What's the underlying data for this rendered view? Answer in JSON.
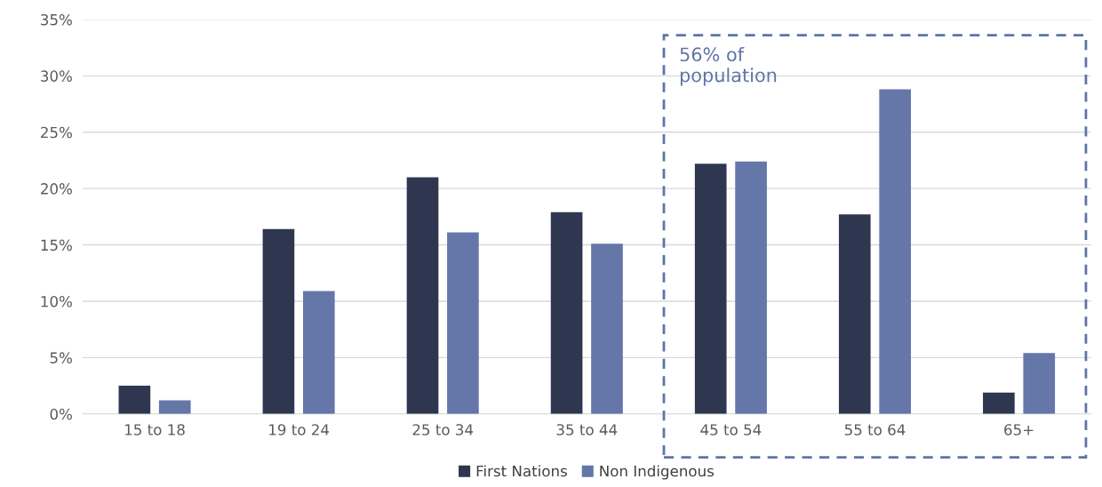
{
  "chart_data": {
    "type": "bar",
    "categories": [
      "15 to 18",
      "19 to 24",
      "25 to 34",
      "35 to 44",
      "45 to 54",
      "55 to 64",
      "65+"
    ],
    "series": [
      {
        "name": "First Nations",
        "color": "#2f3650",
        "values": [
          2.5,
          16.4,
          21.0,
          17.9,
          22.2,
          17.7,
          1.9
        ]
      },
      {
        "name": "Non Indigenous",
        "color": "#6477a8",
        "values": [
          1.2,
          10.9,
          16.1,
          15.1,
          22.4,
          28.8,
          5.4
        ]
      }
    ],
    "ylim": [
      0,
      35
    ],
    "yticks": [
      {
        "value": 0,
        "label": "0%"
      },
      {
        "value": 5,
        "label": "5%"
      },
      {
        "value": 10,
        "label": "10%"
      },
      {
        "value": 15,
        "label": "15%"
      },
      {
        "value": 20,
        "label": "20%"
      },
      {
        "value": 25,
        "label": "25%"
      },
      {
        "value": 30,
        "label": "30%"
      },
      {
        "value": 35,
        "label": "35%"
      }
    ],
    "annotations": [
      "56% of\npopulation"
    ],
    "grid": "y",
    "legend": "bottom"
  }
}
